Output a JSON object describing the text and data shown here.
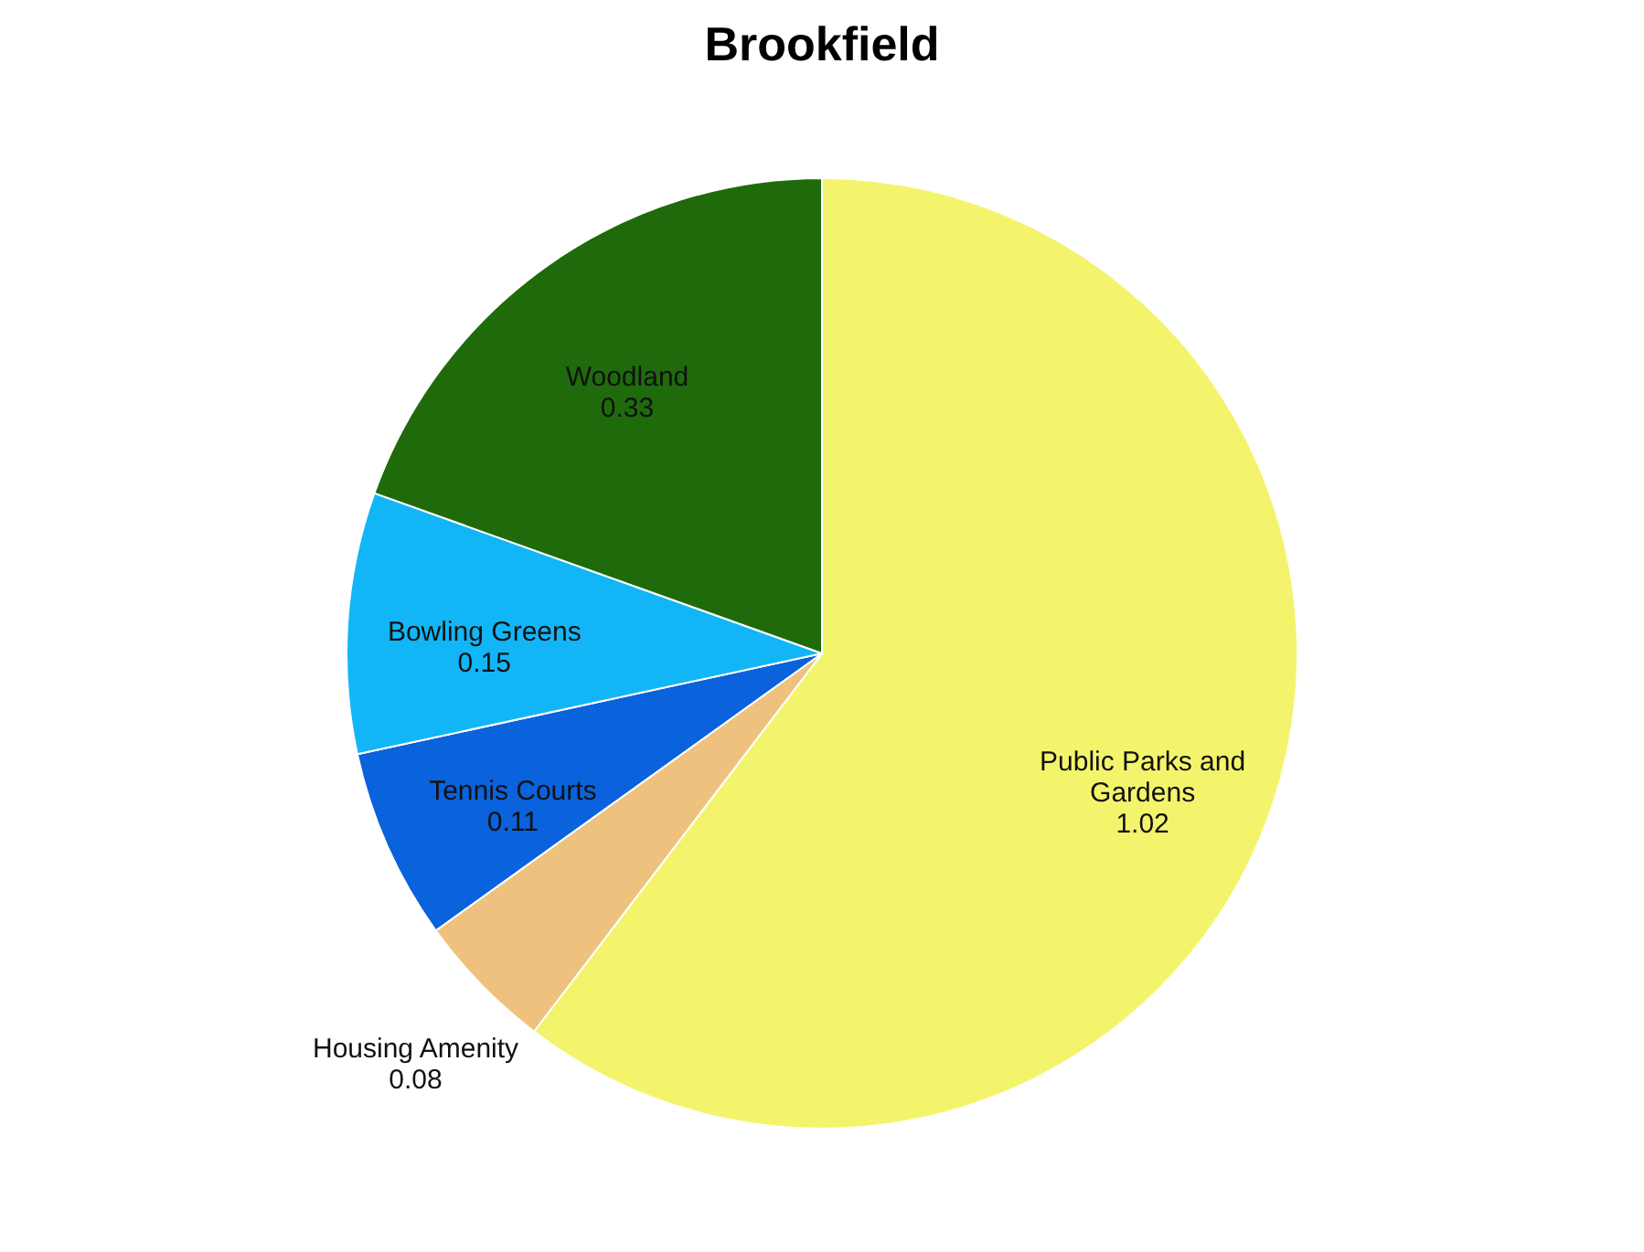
{
  "chart_data": {
    "type": "pie",
    "title": "Brookfield",
    "categories": [
      "Public Parks and Gardens",
      "Housing Amenity",
      "Tennis Courts",
      "Bowling Greens",
      "Woodland"
    ],
    "values": [
      1.02,
      0.08,
      0.11,
      0.15,
      0.33
    ],
    "colors": [
      "#f4f46c",
      "#eec27e",
      "#0a62dc",
      "#12b6f6",
      "#1f6b0c"
    ],
    "data_labels": true,
    "legend": false
  }
}
